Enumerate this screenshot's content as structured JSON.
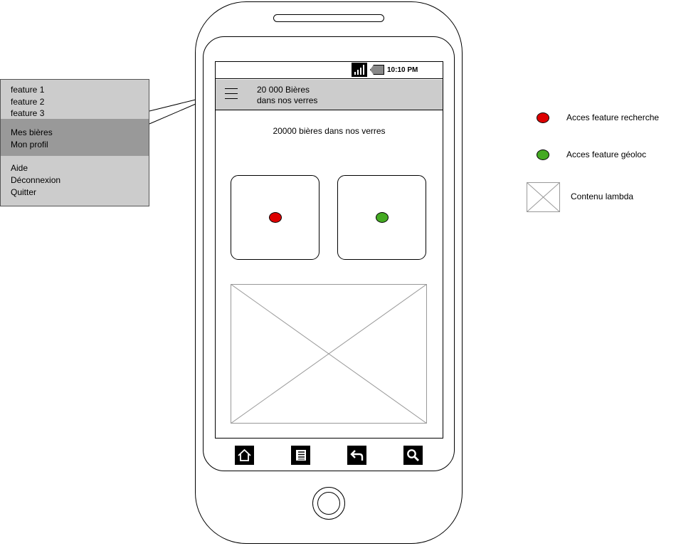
{
  "status_bar": {
    "time": "10:10 PM",
    "icons": [
      "signal-icon",
      "battery-icon"
    ]
  },
  "app_header": {
    "title_line1": "20 000 Bières",
    "title_line2": "dans nos verres",
    "icon": "hamburger-icon"
  },
  "main": {
    "heading": "20000 bières dans nos verres",
    "cards": [
      {
        "name": "feature-recherche",
        "dot_color": "#dd0000"
      },
      {
        "name": "feature-geoloc",
        "dot_color": "#44aa22"
      }
    ]
  },
  "nav_bar": {
    "icons": [
      "home-icon",
      "menu-list-icon",
      "back-icon",
      "search-icon"
    ]
  },
  "side_menu": {
    "group1": [
      "feature 1",
      "feature 2",
      "feature 3"
    ],
    "group2": [
      "Mes bières",
      "Mon profil"
    ],
    "group3": [
      "Aide",
      "Déconnexion",
      "Quitter"
    ],
    "colors": {
      "normal": "#cccccc",
      "highlight": "#999999"
    }
  },
  "legend": {
    "items": [
      {
        "label": "Acces feature recherche",
        "color": "#dd0000"
      },
      {
        "label": "Acces feature géoloc",
        "color": "#44aa22"
      },
      {
        "label": "Contenu lambda"
      }
    ]
  }
}
